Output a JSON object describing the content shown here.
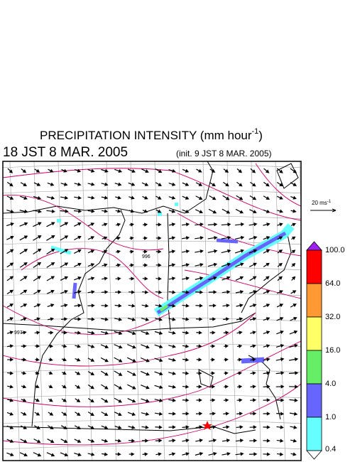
{
  "header": {
    "title": "PRECIPITATION INTENSITY (mm hour",
    "title_sup": "-1",
    "title_end": ")",
    "valid_time": "18 JST 8 MAR. 2005",
    "init_time": "(init. 9 JST 8 MAR. 2005)"
  },
  "map": {
    "isobar_labels": [
      "996",
      "997"
    ]
  },
  "wind_scale": {
    "label": "20 ms",
    "label_sup": "-1"
  },
  "colorbar": {
    "levels": [
      "100.0",
      "64.0",
      "32.0",
      "16.0",
      "4.0",
      "1.0",
      "0.4"
    ],
    "colors": [
      "#a020f0",
      "#ff0000",
      "#ff9933",
      "#ffff66",
      "#66ee66",
      "#6666ff",
      "#66ffff",
      "#ffffff"
    ]
  }
}
